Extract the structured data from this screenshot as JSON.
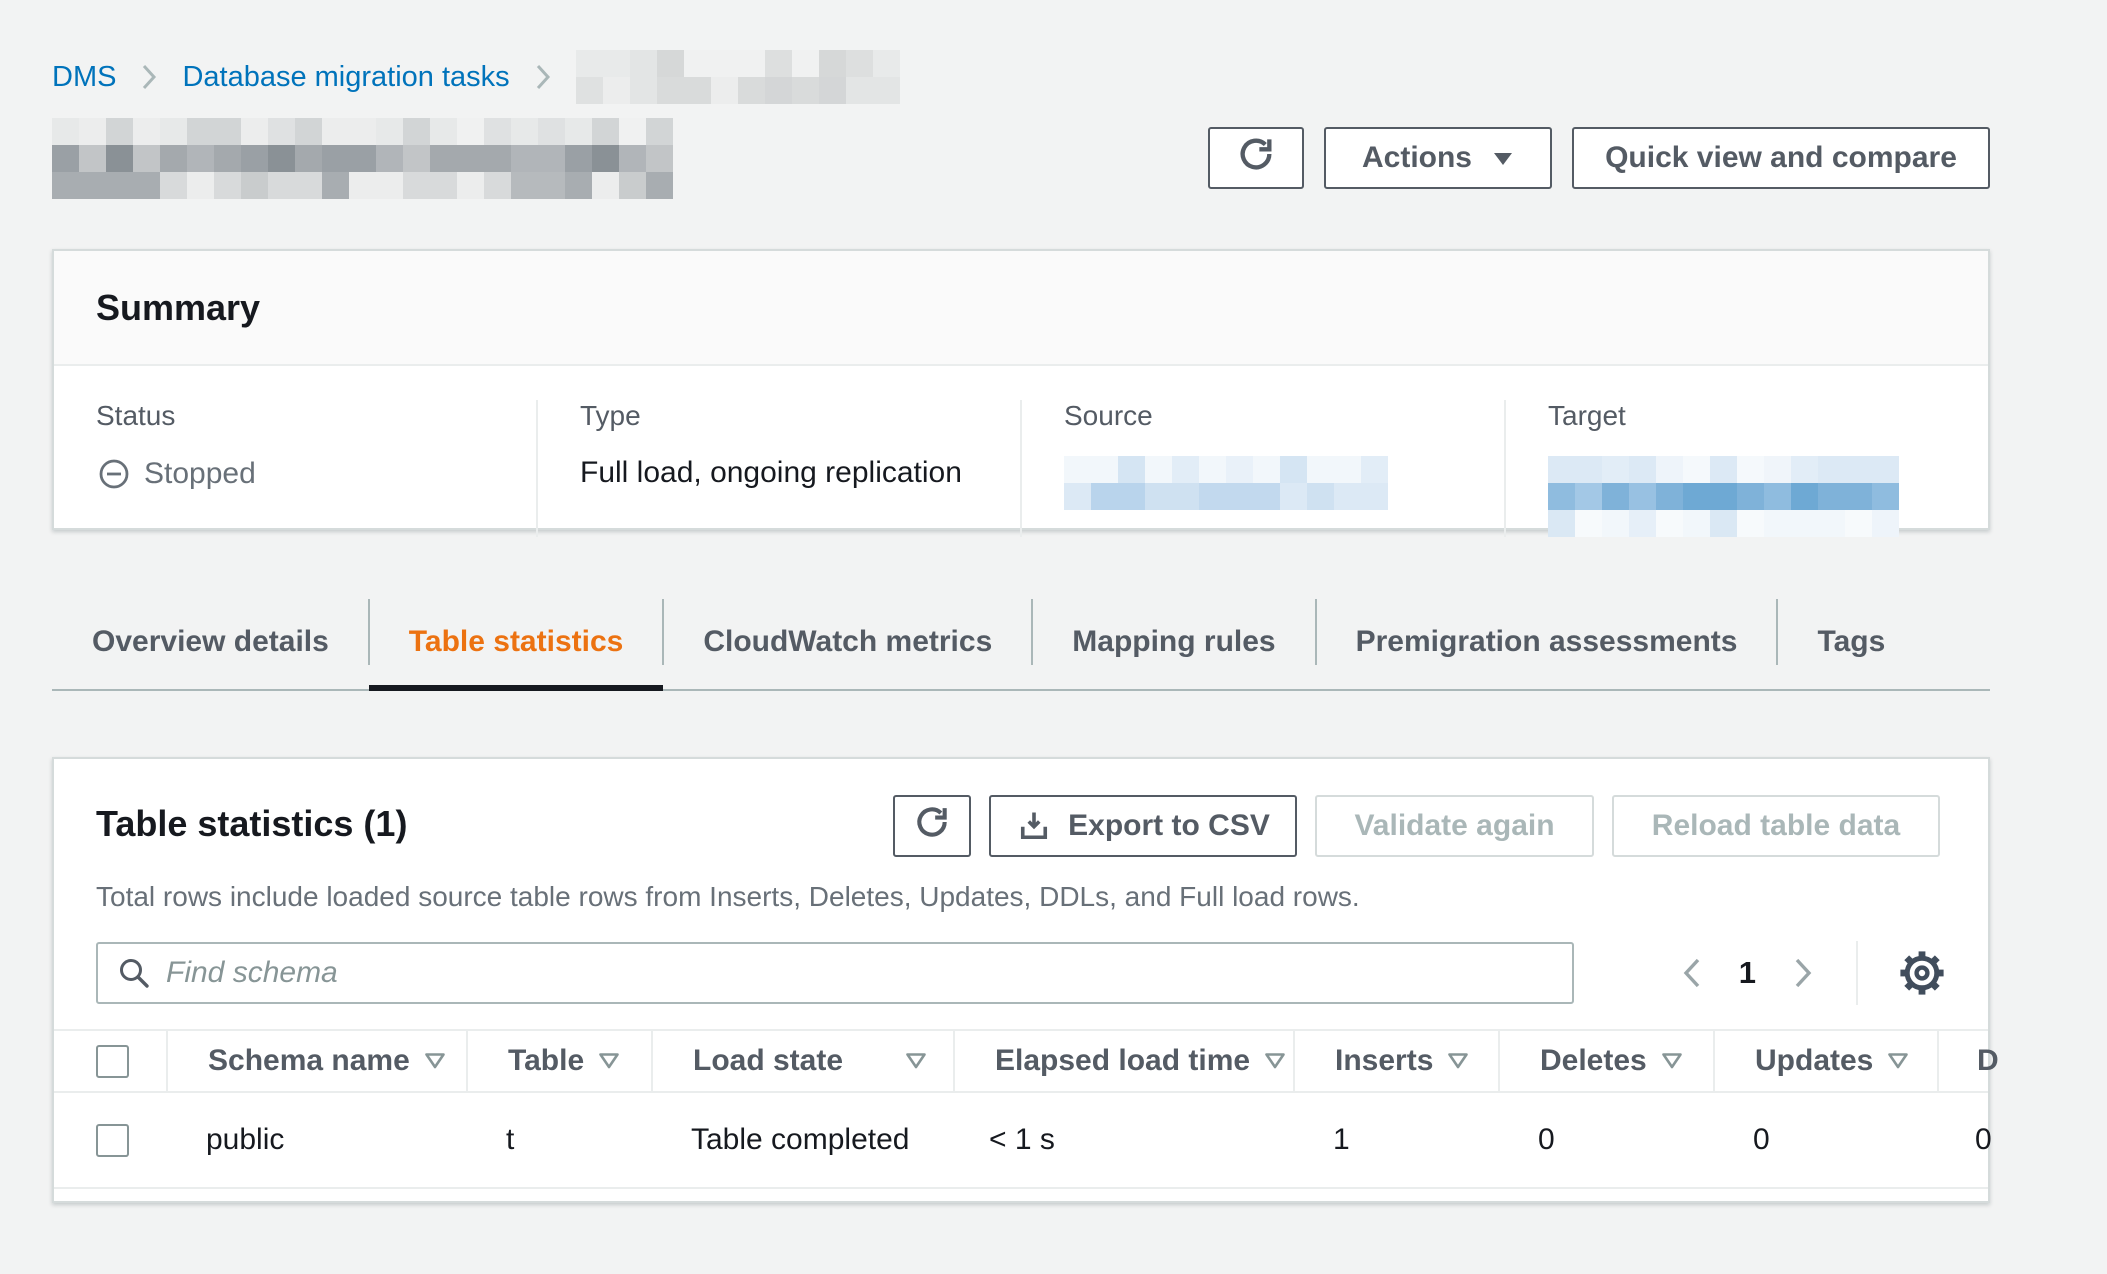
{
  "colors": {
    "link_blue": "#0073bb",
    "active_tab_orange": "#ec7211",
    "text_dark": "#16191f",
    "text_gray": "#545b64",
    "text_muted": "#687078",
    "disabled": "#aab7b8",
    "page_bg": "#f2f3f3",
    "card_border": "#d5dbdb"
  },
  "icons": {
    "breadcrumb_separator": "chevron-right",
    "refresh": "circular-arrow",
    "actions_caret": "triangle-down",
    "status_stopped": "minus-in-circle",
    "export": "download-tray",
    "search": "magnifier",
    "pagination_prev": "chevron-left",
    "pagination_next": "chevron-right",
    "settings": "gear",
    "sort": "triangle-down-outline"
  },
  "breadcrumb": {
    "items": [
      {
        "label": "DMS"
      },
      {
        "label": "Database migration tasks"
      }
    ],
    "last_item_redacted": true
  },
  "header": {
    "title_redacted": true,
    "actions_label": "Actions",
    "quick_view_label": "Quick view and compare"
  },
  "summary": {
    "title": "Summary",
    "status_label": "Status",
    "status_value": "Stopped",
    "type_label": "Type",
    "type_value": "Full load, ongoing replication",
    "source_label": "Source",
    "source_value_redacted": true,
    "target_label": "Target",
    "target_value_redacted": true
  },
  "tabs": {
    "active": "Table statistics",
    "items": [
      {
        "label": "Overview details"
      },
      {
        "label": "Table statistics"
      },
      {
        "label": "CloudWatch metrics"
      },
      {
        "label": "Mapping rules"
      },
      {
        "label": "Premigration assessments"
      },
      {
        "label": "Tags"
      }
    ]
  },
  "table_card": {
    "title": "Table statistics (1)",
    "description": "Total rows include loaded source table rows from Inserts, Deletes, Updates, DDLs, and Full load rows.",
    "export_label": "Export to CSV",
    "validate_label": "Validate again",
    "reload_label": "Reload table data",
    "search_placeholder": "Find schema",
    "pagination": {
      "page": "1"
    },
    "columns": [
      "Schema name",
      "Table",
      "Load state",
      "Elapsed load time",
      "Inserts",
      "Deletes",
      "Updates",
      "D"
    ],
    "rows": [
      {
        "cells": [
          "public",
          "t",
          "Table completed",
          "< 1 s",
          "1",
          "0",
          "0",
          "0"
        ]
      }
    ]
  },
  "redactions": {
    "breadcrumb_blur": {
      "cols": 12,
      "rows": 2,
      "size": 27,
      "seed": 7,
      "row_palettes": [
        [
          "#e8eaea",
          "#dddfdf",
          "#f0f1f1",
          "#d6d8d8",
          "#e3e5e5"
        ],
        [
          "#e3e5e5",
          "#d9dbdb",
          "#eceded",
          "#dfe1e1",
          "#d4d6d7"
        ]
      ]
    },
    "title_blur": {
      "cols": 23,
      "rows": 3,
      "size": 27,
      "seed": 3,
      "row_palettes": [
        [
          "#eceded",
          "#dfe1e2",
          "#d2d5d6",
          "#e7e9e9",
          "#f0f1f1"
        ],
        [
          "#9aa0a5",
          "#8a9196",
          "#b1b5b9",
          "#a4a9ad",
          "#c2c5c7"
        ],
        [
          "#b6babd",
          "#c9cccd",
          "#a8adb1",
          "#d8dadb",
          "#eceded"
        ]
      ]
    },
    "source_blur": {
      "cols": 12,
      "rows": 2,
      "size": 27,
      "seed": 11,
      "row_palettes": [
        [
          "#e9f1f9",
          "#dce9f5",
          "#f2f7fb",
          "#d5e5f3",
          "#e2edf7"
        ],
        [
          "#cfe1f1",
          "#c2d9ee",
          "#dce9f5",
          "#b9d4ec",
          "#cbdff0"
        ]
      ]
    },
    "target_blur": {
      "cols": 13,
      "rows": 3,
      "size": 27,
      "seed": 5,
      "row_palettes": [
        [
          "#eef4fa",
          "#e2edf7",
          "#f5f9fc",
          "#dce9f5",
          "#f0f5fa"
        ],
        [
          "#8fbcdf",
          "#7fb2d9",
          "#a3c8e6",
          "#6ea9d4",
          "#98c1e2"
        ],
        [
          "#e6eff8",
          "#f2f7fb",
          "#dae8f4",
          "#eef4fa",
          "#f7fafc"
        ]
      ]
    }
  }
}
